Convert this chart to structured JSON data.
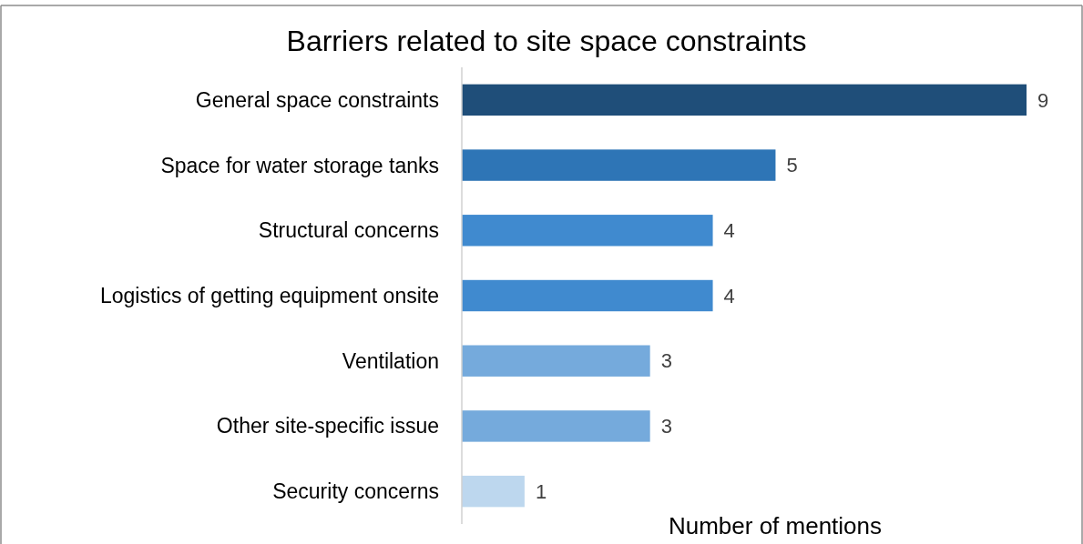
{
  "chart_data": {
    "type": "bar",
    "orientation": "horizontal",
    "title": "Barriers related to site space constraints",
    "xlabel": "Number of mentions",
    "categories": [
      "General space constraints",
      "Space for water storage tanks",
      "Structural concerns",
      "Logistics of getting equipment onsite",
      "Ventilation",
      "Other site-specific issue",
      "Security concerns"
    ],
    "values": [
      9,
      5,
      4,
      4,
      3,
      3,
      1
    ],
    "colors": [
      "#1f4e79",
      "#2e75b6",
      "#408acf",
      "#408acf",
      "#75aadc",
      "#75aadc",
      "#bdd7ee"
    ],
    "xlim": [
      0,
      9
    ],
    "data_labels": true,
    "tick_labels": "y"
  }
}
